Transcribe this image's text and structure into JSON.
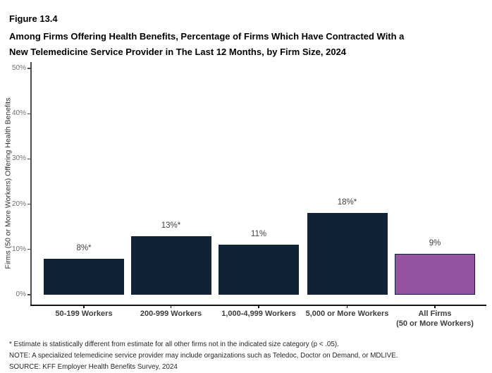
{
  "figure": {
    "number": "Figure 13.4",
    "title_lines": [
      "Among Firms Offering Health Benefits, Percentage of Firms Which Have Contracted With a",
      "New Telemedicine Service Provider in The Last 12 Months, by Firm Size, 2024"
    ]
  },
  "chart_data": {
    "type": "bar",
    "title": "Among Firms Offering Health Benefits, Percentage of Firms Which Have Contracted With a New Telemedicine Service Provider in The Last 12 Months, by Firm Size, 2024",
    "categories": [
      "50-199 Workers",
      "200-999 Workers",
      "1,000-4,999 Workers",
      "5,000 or More Workers",
      "All Firms\n(50 or More Workers)"
    ],
    "values": [
      8,
      13,
      11,
      18,
      9
    ],
    "value_labels": [
      "8%*",
      "13%*",
      "11%",
      "18%*",
      "9%"
    ],
    "bar_colors": [
      "#0f2236",
      "#0f2236",
      "#0f2236",
      "#0f2236",
      "#9452a0"
    ],
    "bar_border_color": "#0f2236",
    "xlabel": "",
    "ylabel": "Firms (50 or More Workers) Offering Health Benefits",
    "ylim": [
      0,
      50
    ],
    "ytick_labels": [
      "0%",
      "10%",
      "20%",
      "30%",
      "40%",
      "50%"
    ],
    "grid": false,
    "legend": false,
    "colors": {
      "axis_y": "#4d4d4d",
      "axis_x": "#141414",
      "tick_label": "#707070",
      "value_label": "#404040",
      "category_label": "#3d3d3d"
    }
  },
  "footnotes": {
    "asterisk": "* Estimate is statistically different from estimate for all other firms not in the indicated size category (p < .05).",
    "note": "NOTE: A specialized telemedicine service provider may include organizations such as Teledoc, Doctor on Demand, or MDLIVE.",
    "source": "SOURCE: KFF Employer Health Benefits Survey, 2024"
  }
}
